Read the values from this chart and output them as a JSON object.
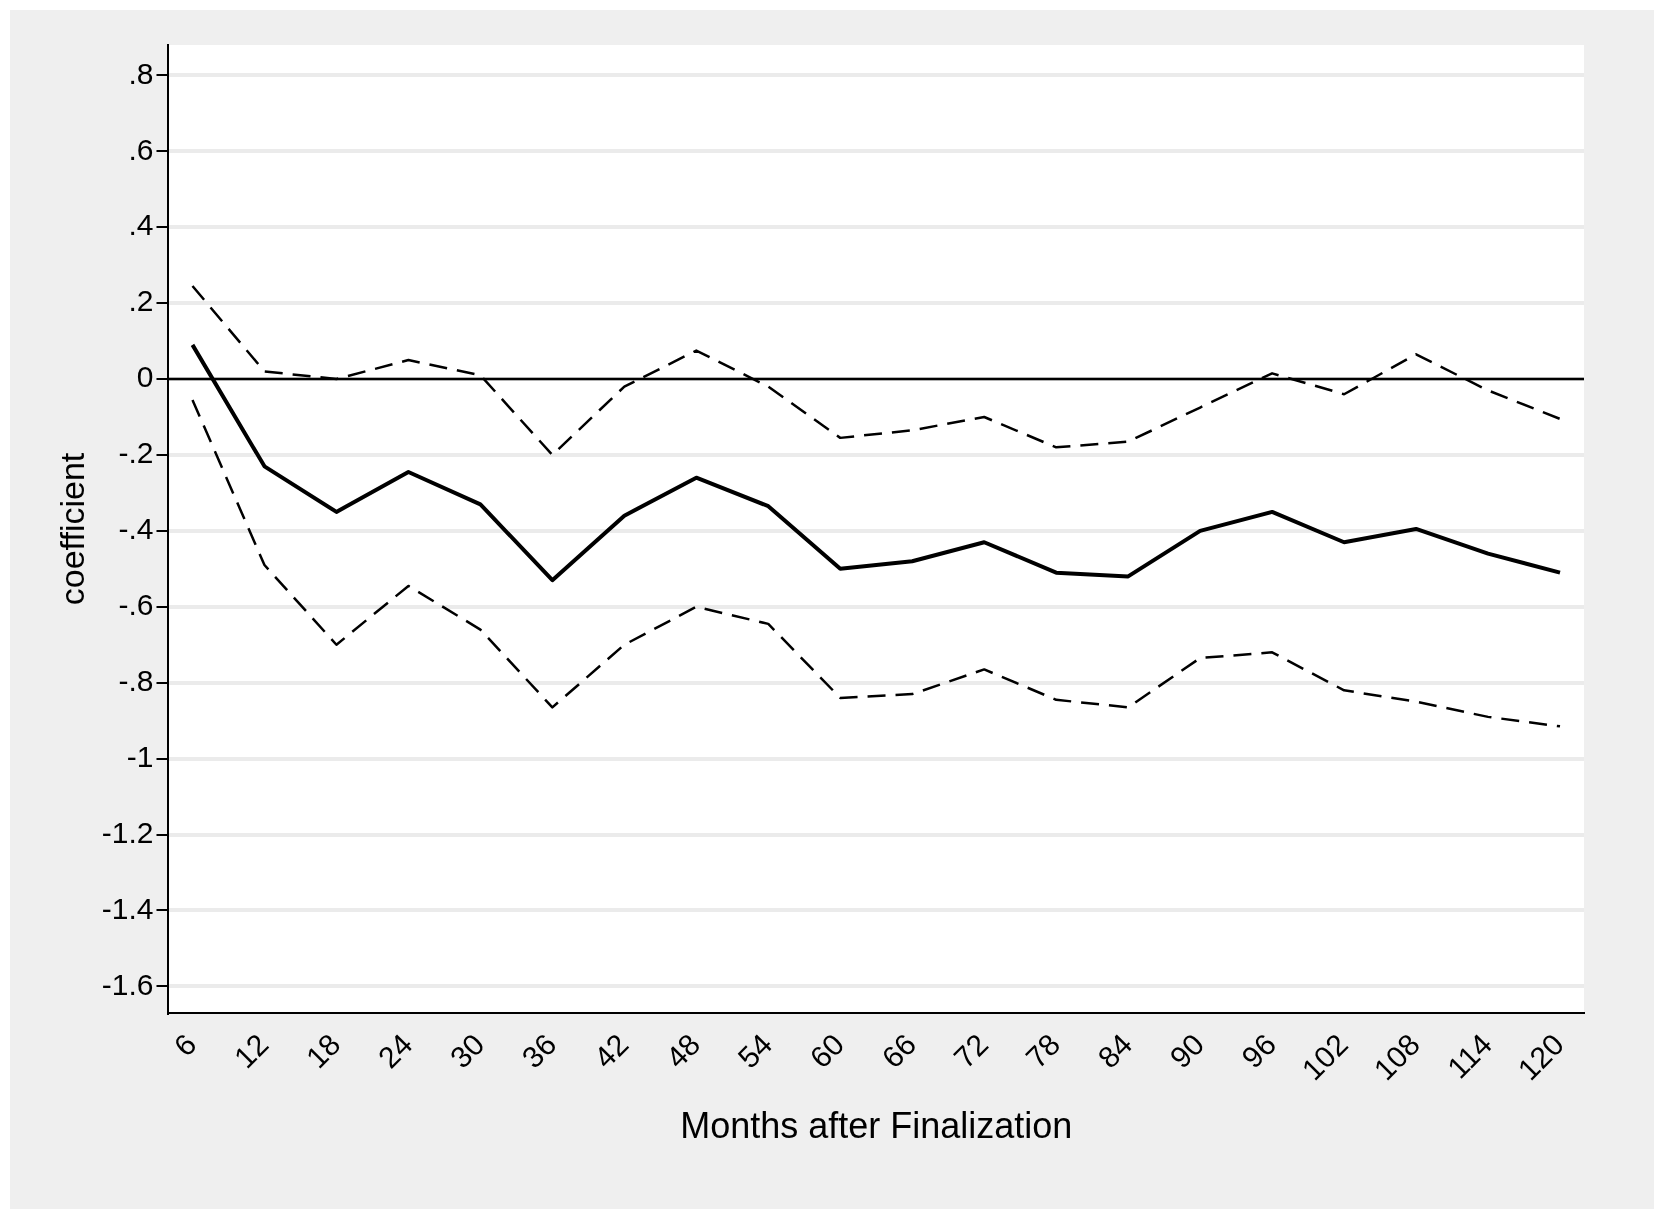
{
  "chart_data": {
    "type": "line",
    "xlabel": "Months after Finalization",
    "ylabel": "coefficient",
    "x": [
      6,
      12,
      18,
      24,
      30,
      36,
      42,
      48,
      54,
      60,
      66,
      72,
      78,
      84,
      90,
      96,
      102,
      108,
      114,
      120
    ],
    "series": [
      {
        "color": "#000000",
        "line_style": "dashed",
        "values": [
          0.245,
          0.02,
          0,
          0.05,
          0.01,
          -0.2,
          -0.02,
          0.075,
          -0.02,
          -0.155,
          -0.135,
          -0.1,
          -0.18,
          -0.165,
          -0.075,
          0.015,
          -0.04,
          0.065,
          -0.03,
          -0.105
        ]
      },
      {
        "color": "#000000",
        "line_style": "solid",
        "values": [
          0.09,
          -0.23,
          -0.35,
          -0.245,
          -0.33,
          -0.53,
          -0.36,
          -0.26,
          -0.335,
          -0.5,
          -0.48,
          -0.43,
          -0.51,
          -0.52,
          -0.4,
          -0.35,
          -0.43,
          -0.395,
          -0.46,
          -0.51
        ]
      },
      {
        "color": "#000000",
        "line_style": "dashed",
        "values": [
          -0.055,
          -0.49,
          -0.7,
          -0.545,
          -0.66,
          -0.865,
          -0.7,
          -0.6,
          -0.645,
          -0.84,
          -0.83,
          -0.765,
          -0.845,
          -0.865,
          -0.735,
          -0.72,
          -0.82,
          -0.85,
          -0.89,
          -0.915
        ]
      }
    ],
    "xlim": [
      4,
      122
    ],
    "xticks": [
      6,
      12,
      18,
      24,
      30,
      36,
      42,
      48,
      54,
      60,
      66,
      72,
      78,
      84,
      90,
      96,
      102,
      108,
      114,
      120
    ],
    "ylim": [
      -1.67,
      0.88
    ],
    "yticks": [
      {
        "value": -1.6,
        "label": "-1.6"
      },
      {
        "value": -1.4,
        "label": "-1.4"
      },
      {
        "value": -1.2,
        "label": "-1.2"
      },
      -1,
      {
        "value": -0.8,
        "label": "-.8"
      },
      {
        "value": -0.6,
        "label": "-.6"
      },
      {
        "value": -0.4,
        "label": "-.4"
      },
      {
        "value": -0.2,
        "label": "-.2"
      },
      0,
      {
        "value": 0.2,
        "label": ".2"
      },
      {
        "value": 0.4,
        "label": ".4"
      },
      {
        "value": 0.6,
        "label": ".6"
      },
      {
        "value": 0.8,
        "label": ".8"
      }
    ],
    "ref_lines": [
      {
        "axis": "y",
        "value": 0,
        "color": "#000000"
      }
    ],
    "grid": "y",
    "legend": false,
    "marker": "none"
  }
}
